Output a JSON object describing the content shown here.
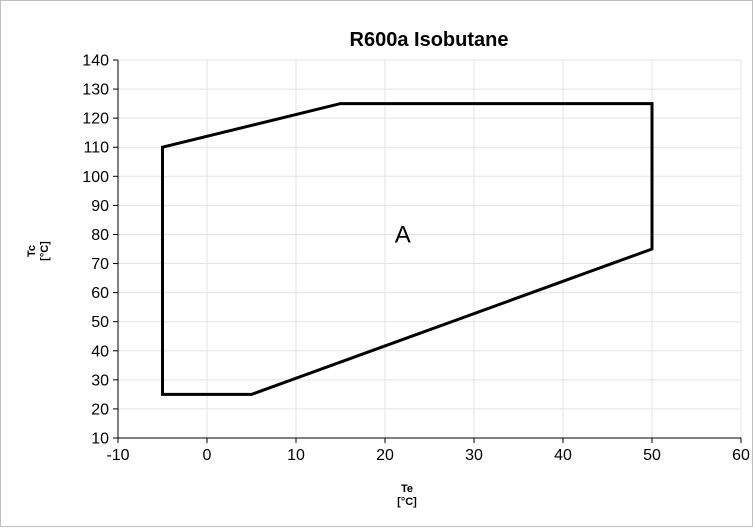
{
  "chart_data": {
    "type": "line",
    "title": "R600a Isobutane",
    "xlabel": "Te",
    "xunit": "[°C]",
    "ylabel": "Tc",
    "yunit": "[°C]",
    "xlim": [
      -10,
      60
    ],
    "ylim": [
      10,
      140
    ],
    "xticks": [
      -10,
      0,
      10,
      20,
      30,
      40,
      50,
      60
    ],
    "yticks": [
      10,
      20,
      30,
      40,
      50,
      60,
      70,
      80,
      90,
      100,
      110,
      120,
      130,
      140
    ],
    "grid": true,
    "series": [
      {
        "closed": true,
        "color": "#000000",
        "points": [
          {
            "x": -5,
            "y": 110
          },
          {
            "x": 15,
            "y": 125
          },
          {
            "x": 50,
            "y": 125
          },
          {
            "x": 50,
            "y": 75
          },
          {
            "x": 5,
            "y": 25
          },
          {
            "x": -5,
            "y": 25
          }
        ]
      }
    ],
    "annotations": [
      {
        "text": "A",
        "x": 22,
        "y": 80
      }
    ]
  }
}
